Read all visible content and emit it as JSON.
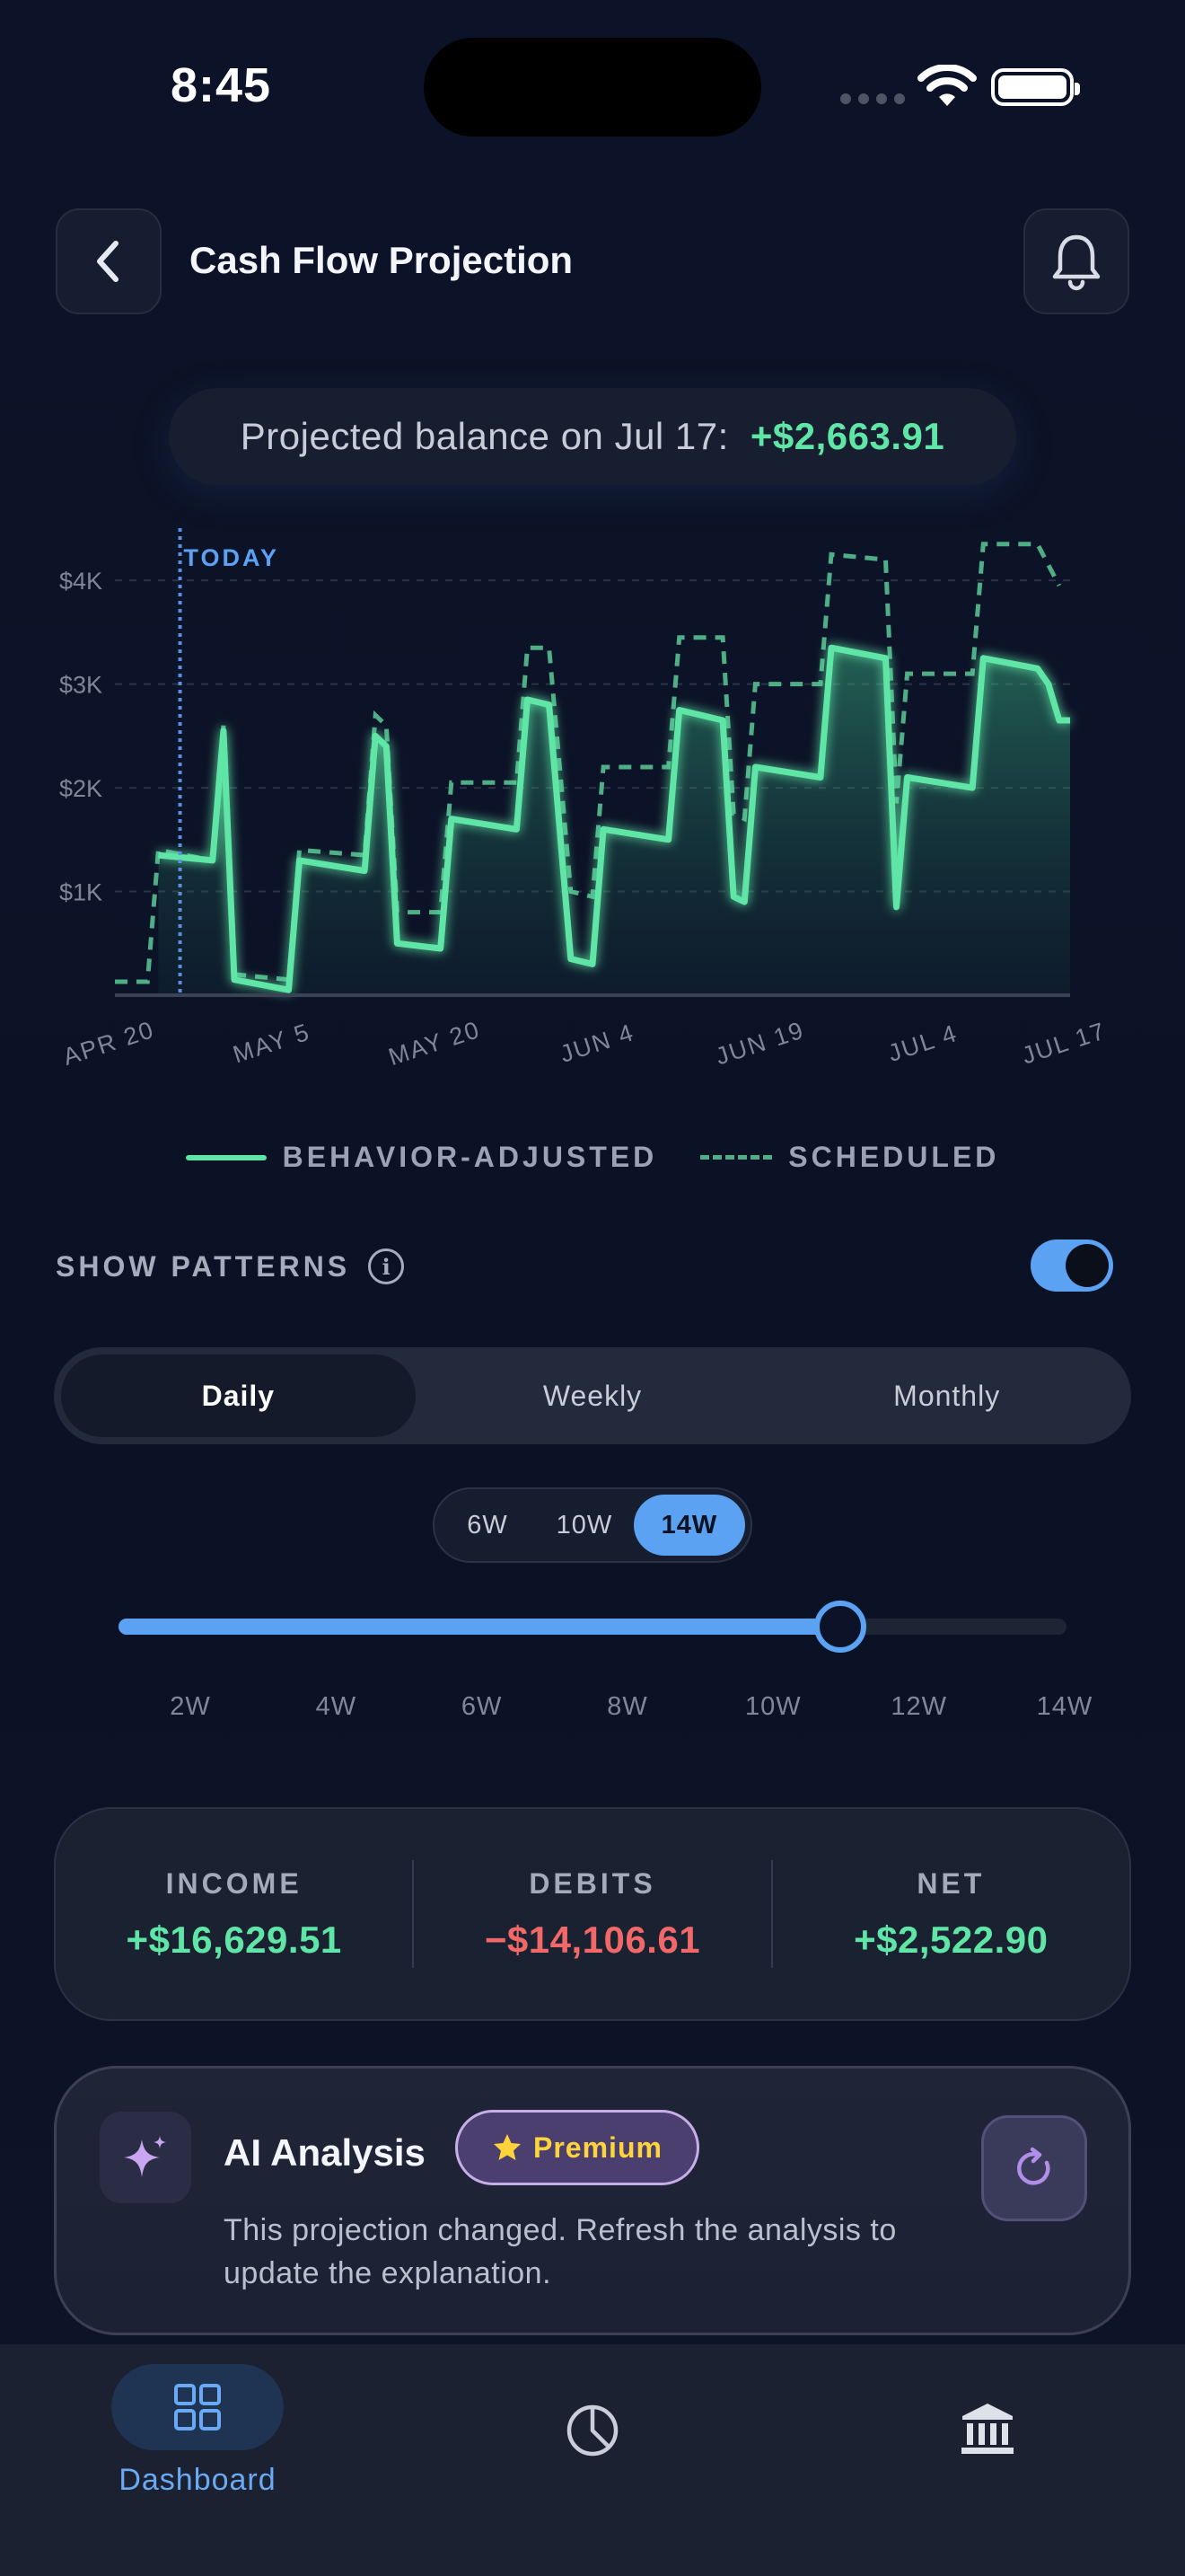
{
  "status_bar": {
    "time": "8:45"
  },
  "header": {
    "title": "Cash Flow Projection"
  },
  "balance": {
    "label": "Projected balance on Jul 17:",
    "value": "+$2,663.91"
  },
  "chart_data": {
    "type": "line",
    "title": "",
    "today_label": "TODAY",
    "today_x": 6,
    "xlabel": "",
    "ylabel": "",
    "xlim": [
      0,
      88
    ],
    "ylim": [
      0,
      4400
    ],
    "x_tick_positions": [
      0,
      15,
      30,
      45,
      60,
      75,
      88
    ],
    "x_tick_labels": [
      "APR 20",
      "MAY 5",
      "MAY 20",
      "JUN 4",
      "JUN 19",
      "JUL 4",
      "JUL 17"
    ],
    "y_tick_values": [
      1000,
      2000,
      3000,
      4000
    ],
    "y_tick_labels": [
      "$1K",
      "$2K",
      "$3K",
      "$4K"
    ],
    "grid": true,
    "series": [
      {
        "name": "BEHAVIOR-ADJUSTED",
        "style": "solid",
        "color": "#5fe6a6",
        "points": [
          [
            4,
            1350
          ],
          [
            9,
            1300
          ],
          [
            10,
            2550
          ],
          [
            11,
            150
          ],
          [
            16,
            50
          ],
          [
            17,
            1300
          ],
          [
            23,
            1200
          ],
          [
            24,
            2500
          ],
          [
            25,
            2400
          ],
          [
            26,
            500
          ],
          [
            30,
            450
          ],
          [
            31,
            1700
          ],
          [
            37,
            1600
          ],
          [
            38,
            2850
          ],
          [
            40,
            2800
          ],
          [
            42,
            350
          ],
          [
            44,
            300
          ],
          [
            45,
            1600
          ],
          [
            51,
            1500
          ],
          [
            52,
            2750
          ],
          [
            56,
            2650
          ],
          [
            57,
            950
          ],
          [
            58,
            900
          ],
          [
            59,
            2200
          ],
          [
            65,
            2100
          ],
          [
            66,
            3350
          ],
          [
            71,
            3250
          ],
          [
            72,
            850
          ],
          [
            73,
            2100
          ],
          [
            79,
            2000
          ],
          [
            80,
            3250
          ],
          [
            85,
            3150
          ],
          [
            86,
            3000
          ],
          [
            87,
            2650
          ],
          [
            88,
            2650
          ]
        ]
      },
      {
        "name": "SCHEDULED",
        "style": "dashed",
        "color": "#4fae86",
        "points": [
          [
            0,
            130
          ],
          [
            3,
            130
          ],
          [
            4,
            1400
          ],
          [
            9,
            1300
          ],
          [
            10,
            2600
          ],
          [
            11,
            200
          ],
          [
            16,
            150
          ],
          [
            17,
            1400
          ],
          [
            23,
            1350
          ],
          [
            24,
            2700
          ],
          [
            25,
            2600
          ],
          [
            26,
            800
          ],
          [
            30,
            800
          ],
          [
            31,
            2050
          ],
          [
            37,
            2050
          ],
          [
            38,
            3350
          ],
          [
            40,
            3350
          ],
          [
            42,
            1000
          ],
          [
            44,
            950
          ],
          [
            45,
            2200
          ],
          [
            51,
            2200
          ],
          [
            52,
            3450
          ],
          [
            56,
            3450
          ],
          [
            57,
            1750
          ],
          [
            58,
            1700
          ],
          [
            59,
            3000
          ],
          [
            65,
            3000
          ],
          [
            66,
            4250
          ],
          [
            71,
            4200
          ],
          [
            72,
            1850
          ],
          [
            73,
            3100
          ],
          [
            79,
            3100
          ],
          [
            80,
            4350
          ],
          [
            85,
            4350
          ],
          [
            86,
            4150
          ],
          [
            87,
            3950
          ]
        ]
      }
    ]
  },
  "legend": {
    "solid_label": "BEHAVIOR-ADJUSTED",
    "dashed_label": "SCHEDULED"
  },
  "patterns": {
    "label": "SHOW PATTERNS",
    "enabled": true
  },
  "granularity": {
    "options": [
      "Daily",
      "Weekly",
      "Monthly"
    ],
    "selected": "Daily"
  },
  "range": {
    "options": [
      "6W",
      "10W",
      "14W"
    ],
    "selected": "14W"
  },
  "slider": {
    "value_weeks": 12,
    "min_weeks": 1,
    "max_weeks": 14,
    "tick_labels": [
      "2W",
      "4W",
      "6W",
      "8W",
      "10W",
      "12W",
      "14W"
    ]
  },
  "summary": {
    "income": {
      "label": "INCOME",
      "value": "+$16,629.51"
    },
    "debits": {
      "label": "DEBITS",
      "value": "−$14,106.61"
    },
    "net": {
      "label": "NET",
      "value": "+$2,522.90"
    }
  },
  "ai": {
    "title": "AI Analysis",
    "badge": "Premium",
    "description": "This projection changed. Refresh the analysis to update the explanation."
  },
  "nav": {
    "dashboard_label": "Dashboard",
    "active": "Dashboard"
  },
  "colors": {
    "accent": "#5ba2f2",
    "positive": "#5fe6a6",
    "negative": "#f06868",
    "premium": "#ffd43b"
  }
}
